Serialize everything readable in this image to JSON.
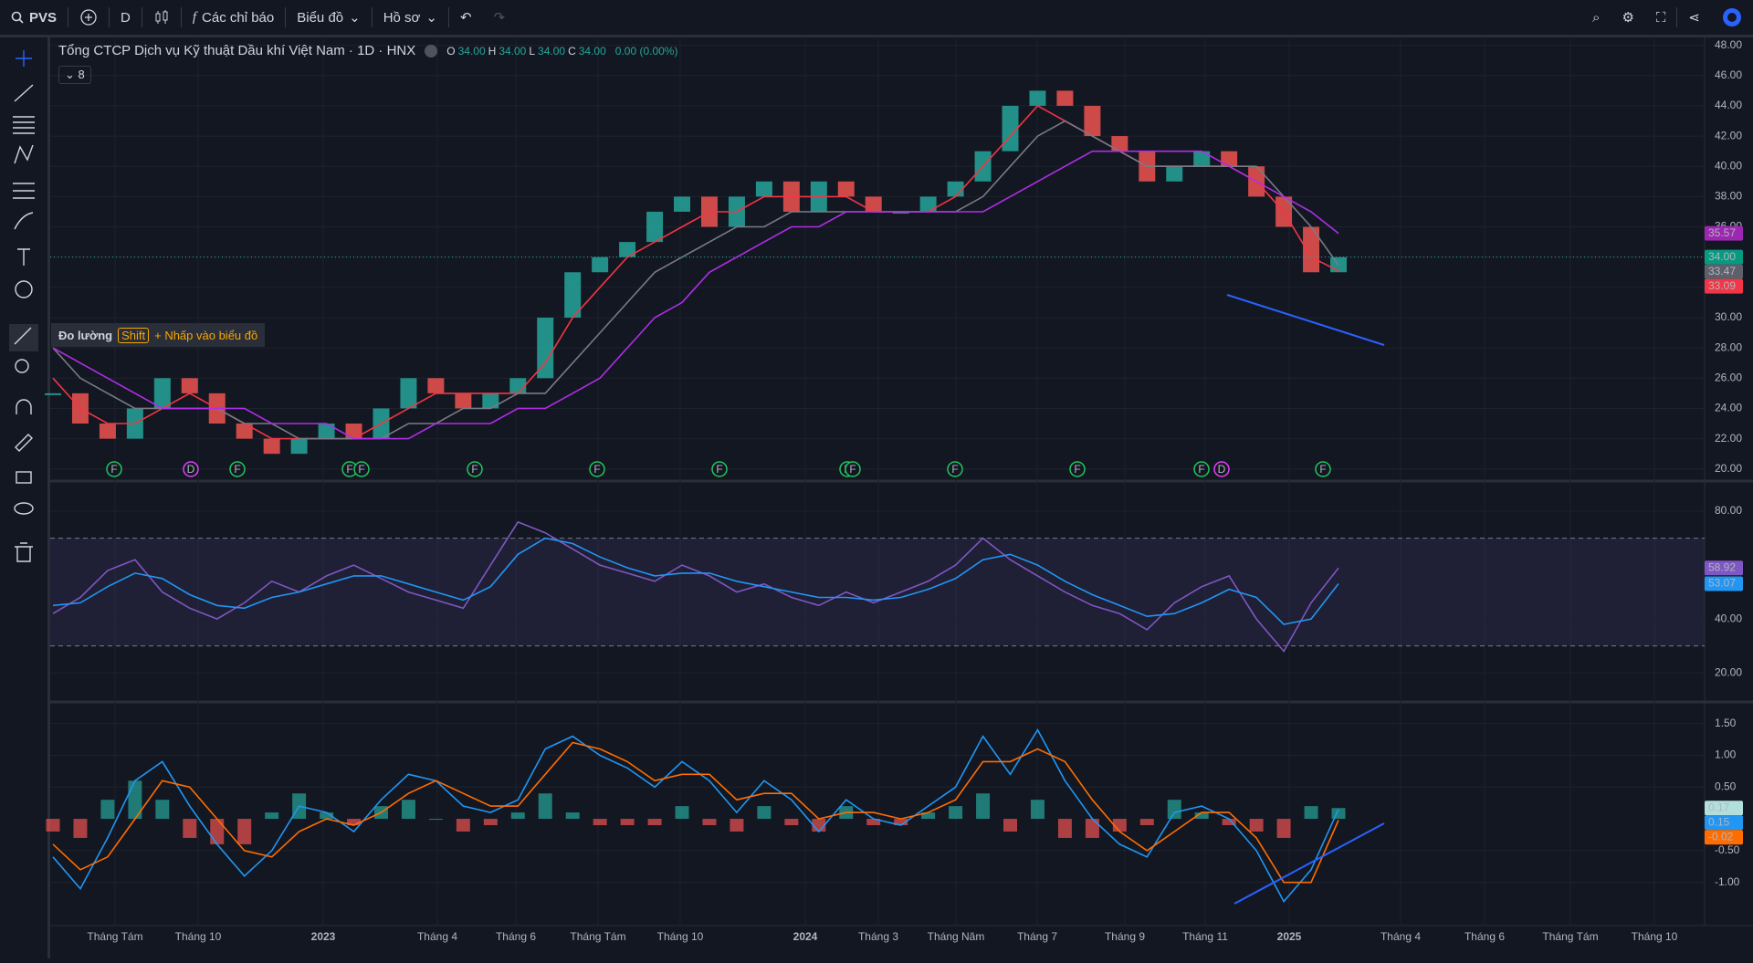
{
  "toolbar": {
    "symbol": "PVS",
    "interval": "D",
    "indicators": "Các chỉ báo",
    "chart_menu": "Biểu đồ",
    "profile": "Hồ sơ"
  },
  "legend": {
    "title": "Tổng CTCP Dịch vụ Kỹ thuật Dầu khí Việt Nam · 1D · HNX",
    "ohlc": [
      {
        "label": "O",
        "value": "34.00"
      },
      {
        "label": "H",
        "value": "34.00"
      },
      {
        "label": "L",
        "value": "34.00"
      },
      {
        "label": "C",
        "value": "34.00"
      }
    ],
    "change": "0.00 (0.00%)",
    "collapse_count": "8"
  },
  "tooltip": {
    "title": "Đo lường",
    "key": "Shift",
    "hint": "+ Nhấp vào biểu đồ"
  },
  "events": [
    "F",
    "D",
    "F",
    "F",
    "F",
    "F",
    "F",
    "F",
    "F",
    "F",
    "F",
    "F",
    "F",
    "D",
    "F"
  ],
  "time_axis": [
    "Tháng Tám",
    "Tháng 10",
    "2023",
    "Tháng 4",
    "Tháng 6",
    "Tháng Tám",
    "Tháng 10",
    "2024",
    "Tháng 3",
    "Tháng Năm",
    "Tháng 7",
    "Tháng 9",
    "Tháng 11",
    "2025",
    "Tháng 4",
    "Tháng 6",
    "Tháng Tám",
    "Tháng 10"
  ],
  "chart_data": [
    {
      "type": "candle-line",
      "ylim": [
        19.2,
        48.4
      ],
      "yticks": [
        {
          "value": 20,
          "label": "20.00"
        },
        {
          "value": 22,
          "label": "22.00"
        },
        {
          "value": 24,
          "label": "24.00"
        },
        {
          "value": 26,
          "label": "26.00"
        },
        {
          "value": 28,
          "label": "28.00"
        },
        {
          "value": 30,
          "label": "30.00"
        },
        {
          "value": 32,
          "label": "32.00"
        },
        {
          "value": 34,
          "label": "34.00"
        },
        {
          "value": 36,
          "label": "36.00"
        },
        {
          "value": 38,
          "label": "38.00"
        },
        {
          "value": 40,
          "label": "40.00"
        },
        {
          "value": 42,
          "label": "42.00"
        },
        {
          "value": 44,
          "label": "44.00"
        },
        {
          "value": 46,
          "label": "46.00"
        },
        {
          "value": 48,
          "label": "48.00"
        }
      ],
      "grid": true,
      "series": [
        {
          "kind": "close",
          "up_color": "#26a69a",
          "down_color": "#ef5350",
          "values": [
            25,
            23,
            22,
            24,
            26,
            25,
            23,
            22,
            21,
            22,
            23,
            22,
            24,
            26,
            25,
            24,
            25,
            26,
            30,
            33,
            34,
            35,
            37,
            38,
            36,
            38,
            39,
            37,
            39,
            38,
            37,
            37,
            38,
            39,
            41,
            44,
            45,
            44,
            42,
            41,
            39,
            40,
            41,
            40,
            38,
            36,
            33,
            34
          ]
        },
        {
          "kind": "line",
          "color": "#f23645",
          "values": [
            26,
            24,
            23,
            23,
            24,
            25,
            24,
            23,
            22,
            22,
            22,
            22,
            23,
            24,
            25,
            25,
            25,
            25,
            27,
            30,
            32,
            34,
            35,
            36,
            37,
            37,
            38,
            38,
            38,
            38,
            37,
            37,
            37,
            38,
            40,
            42,
            44,
            43,
            42,
            41,
            40,
            40,
            40,
            40,
            39,
            37,
            34,
            33.09
          ]
        },
        {
          "kind": "line",
          "color": "#787b86",
          "values": [
            28,
            26,
            25,
            24,
            24,
            24,
            24,
            23,
            23,
            22,
            22,
            22,
            22,
            23,
            23,
            24,
            24,
            25,
            25,
            27,
            29,
            31,
            33,
            34,
            35,
            36,
            36,
            37,
            37,
            37,
            37,
            37,
            37,
            37,
            38,
            40,
            42,
            43,
            42,
            41,
            40,
            40,
            40,
            40,
            40,
            38,
            36,
            33.47
          ]
        },
        {
          "kind": "line",
          "color": "#b02ee6",
          "values": [
            28,
            27,
            26,
            25,
            24,
            24,
            24,
            24,
            23,
            23,
            23,
            22,
            22,
            22,
            23,
            23,
            23,
            24,
            24,
            25,
            26,
            28,
            30,
            31,
            33,
            34,
            35,
            36,
            36,
            37,
            37,
            37,
            37,
            37,
            37,
            38,
            39,
            40,
            41,
            41,
            41,
            41,
            41,
            40,
            39,
            38,
            37,
            35.57
          ]
        }
      ],
      "scale_labels": [
        {
          "value": 35.57,
          "label": "35.57",
          "color": "#9c27b0"
        },
        {
          "value": 34,
          "label": "34.00",
          "color": "#089981"
        },
        {
          "value": 33.47,
          "label": "33.47",
          "color": "#5d606b"
        },
        {
          "value": 33.09,
          "label": "33.09",
          "color": "#f23645"
        }
      ]
    },
    {
      "type": "line",
      "ylim": [
        9.2,
        91.2
      ],
      "yticks": [
        {
          "value": 20,
          "label": "20.00"
        },
        {
          "value": 40,
          "label": "40.00"
        },
        {
          "value": 80,
          "label": "80.00"
        }
      ],
      "band": [
        30,
        70
      ],
      "series": [
        {
          "kind": "line",
          "color": "#7e57c2",
          "values": [
            42,
            48,
            58,
            62,
            50,
            44,
            40,
            46,
            54,
            50,
            56,
            60,
            55,
            50,
            47,
            44,
            60,
            76,
            72,
            66,
            60,
            57,
            54,
            60,
            56,
            50,
            53,
            48,
            45,
            50,
            46,
            50,
            54,
            60,
            70,
            62,
            56,
            50,
            45,
            42,
            36,
            46,
            52,
            56,
            40,
            28,
            46,
            58.92
          ]
        },
        {
          "kind": "line",
          "color": "#2196f3",
          "values": [
            45,
            46,
            52,
            57,
            55,
            49,
            45,
            44,
            48,
            50,
            53,
            56,
            56,
            53,
            50,
            47,
            52,
            64,
            70,
            68,
            63,
            59,
            56,
            57,
            57,
            54,
            52,
            50,
            48,
            48,
            47,
            48,
            51,
            55,
            62,
            64,
            60,
            54,
            49,
            45,
            41,
            42,
            46,
            51,
            48,
            38,
            40,
            53.07
          ]
        }
      ],
      "scale_labels": [
        {
          "value": 58.92,
          "label": "58.92",
          "color": "#7e57c2"
        },
        {
          "value": 53.07,
          "label": "53.07",
          "color": "#2196f3"
        }
      ]
    },
    {
      "type": "macd",
      "ylim": [
        -1.68,
        1.84
      ],
      "yticks": [
        {
          "value": -1,
          "label": "-1.00"
        },
        {
          "value": -0.5,
          "label": "-0.50"
        },
        {
          "value": 0.5,
          "label": "0.50"
        },
        {
          "value": 1,
          "label": "1.00"
        },
        {
          "value": 1.5,
          "label": "1.50"
        }
      ],
      "series": [
        {
          "kind": "histogram",
          "up_color": "#26a69a",
          "down_color": "#ef5350",
          "values": [
            -0.2,
            -0.3,
            0.3,
            0.6,
            0.3,
            -0.3,
            -0.4,
            -0.4,
            0.1,
            0.4,
            0.1,
            -0.1,
            0.2,
            0.3,
            0.0,
            -0.2,
            -0.1,
            0.1,
            0.4,
            0.1,
            -0.1,
            -0.1,
            -0.1,
            0.2,
            -0.1,
            -0.2,
            0.2,
            -0.1,
            -0.2,
            0.2,
            -0.1,
            -0.1,
            0.1,
            0.2,
            0.4,
            -0.2,
            0.3,
            -0.3,
            -0.3,
            -0.2,
            -0.1,
            0.3,
            0.1,
            -0.1,
            -0.2,
            -0.3,
            0.2,
            0.17
          ]
        },
        {
          "kind": "line",
          "color": "#2196f3",
          "values": [
            -0.6,
            -1.1,
            -0.3,
            0.6,
            0.9,
            0.2,
            -0.4,
            -0.9,
            -0.5,
            0.2,
            0.1,
            -0.2,
            0.3,
            0.7,
            0.6,
            0.2,
            0.1,
            0.3,
            1.1,
            1.3,
            1.0,
            0.8,
            0.5,
            0.9,
            0.6,
            0.1,
            0.6,
            0.3,
            -0.2,
            0.3,
            0.0,
            -0.1,
            0.2,
            0.5,
            1.3,
            0.7,
            1.4,
            0.6,
            0.0,
            -0.4,
            -0.6,
            0.1,
            0.2,
            0.0,
            -0.5,
            -1.3,
            -0.8,
            0.15
          ]
        },
        {
          "kind": "line",
          "color": "#ff6d00",
          "values": [
            -0.4,
            -0.8,
            -0.6,
            0.0,
            0.6,
            0.5,
            0.0,
            -0.5,
            -0.6,
            -0.2,
            0.0,
            -0.1,
            0.1,
            0.4,
            0.6,
            0.4,
            0.2,
            0.2,
            0.7,
            1.2,
            1.1,
            0.9,
            0.6,
            0.7,
            0.7,
            0.3,
            0.4,
            0.4,
            0.0,
            0.1,
            0.1,
            0.0,
            0.1,
            0.3,
            0.9,
            0.9,
            1.1,
            0.9,
            0.3,
            -0.2,
            -0.5,
            -0.2,
            0.1,
            0.1,
            -0.3,
            -1.0,
            -1.0,
            -0.02
          ]
        }
      ],
      "scale_labels": [
        {
          "value": 0.17,
          "label": "0.17",
          "color": "#b2dfdb"
        },
        {
          "value": 0.15,
          "label": "0.15",
          "color": "#2196f3"
        },
        {
          "value": -0.02,
          "label": "-0.02",
          "color": "#ff6d00"
        }
      ]
    }
  ]
}
